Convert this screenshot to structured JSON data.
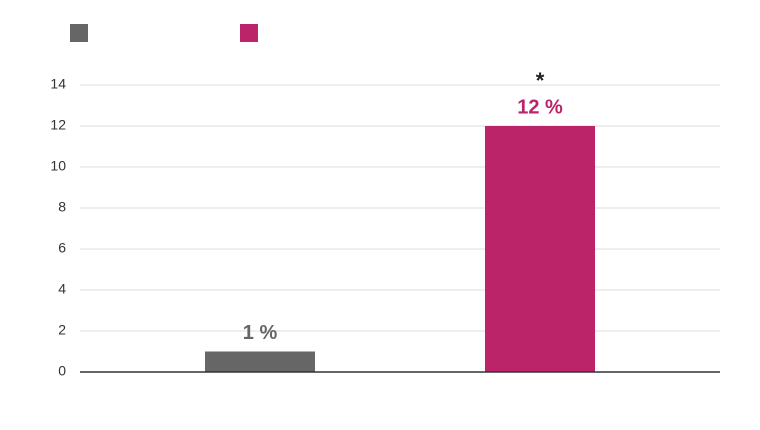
{
  "chart_data": {
    "type": "bar",
    "categories": [
      null,
      null
    ],
    "values": [
      1,
      12
    ],
    "value_labels": [
      "1 %",
      "12 %"
    ],
    "colors": [
      "#666666",
      "#bb2469"
    ],
    "annotation": "*",
    "ylim": [
      0,
      14
    ],
    "yticks": [
      0,
      2,
      4,
      6,
      8,
      10,
      12,
      14
    ],
    "grid": true
  }
}
